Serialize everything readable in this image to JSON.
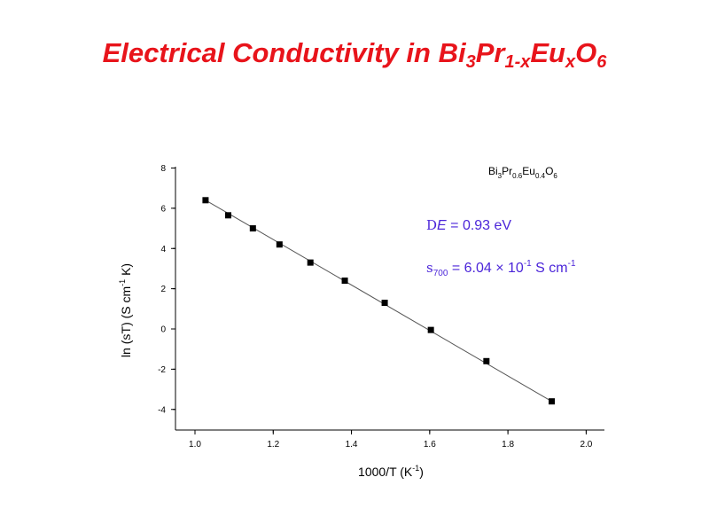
{
  "title": {
    "parts": [
      {
        "text": "Electrical Conductivity in Bi",
        "sub": false
      },
      {
        "text": "3",
        "sub": true
      },
      {
        "text": "Pr",
        "sub": false
      },
      {
        "text": "1-x",
        "sub": true
      },
      {
        "text": "Eu",
        "sub": false
      },
      {
        "text": "x",
        "sub": true
      },
      {
        "text": "O",
        "sub": false
      },
      {
        "text": "6",
        "sub": true
      }
    ]
  },
  "colors": {
    "title": "#e8141b",
    "annotation": "#4b25d9",
    "marker": "#000000",
    "fit_line": "#555555"
  },
  "chart_data": {
    "type": "scatter",
    "title": "",
    "xlabel": {
      "base": "1000/T (K",
      "sup": "-1",
      "end": ")"
    },
    "ylabel": {
      "pre": "ln (",
      "greek": "s",
      "mid": "T) (S cm",
      "sup": "-1",
      "end": " K)"
    },
    "xlim": [
      0.9,
      2.0
    ],
    "ylim": [
      -5,
      8
    ],
    "xticks": [
      1.0,
      1.2,
      1.4,
      1.6,
      1.8,
      2.0
    ],
    "xtick_labels": [
      "1.0",
      "1.2",
      "1.4",
      "1.6",
      "1.8",
      "2.0"
    ],
    "yticks": [
      -4,
      -2,
      0,
      2,
      4,
      6,
      8
    ],
    "ytick_labels": [
      "-4",
      "-2",
      "0",
      "2",
      "4",
      "6",
      "8"
    ],
    "grid": false,
    "marker": "square",
    "series": [
      {
        "x": [
          1.027,
          1.085,
          1.148,
          1.216,
          1.295,
          1.383,
          1.485,
          1.603,
          1.745,
          1.912
        ],
        "y": [
          6.4,
          5.65,
          5.0,
          4.2,
          3.3,
          2.4,
          1.3,
          -0.05,
          -1.6,
          -3.6
        ]
      }
    ],
    "fit_line": {
      "x": [
        1.027,
        1.912
      ],
      "y": [
        6.4,
        -3.6
      ]
    },
    "annotations": {
      "sample": {
        "parts": [
          {
            "text": "Bi",
            "sub": false
          },
          {
            "text": "3",
            "sub": true
          },
          {
            "text": "Pr",
            "sub": false
          },
          {
            "text": "0.6",
            "sub": true
          },
          {
            "text": "Eu",
            "sub": false
          },
          {
            "text": "0.4",
            "sub": true
          },
          {
            "text": "O",
            "sub": false
          },
          {
            "text": "6",
            "sub": true
          }
        ]
      },
      "activation_energy": {
        "greek": "D",
        "var": "E",
        "rest": " = 0.93 eV"
      },
      "sigma700": {
        "greek": "s",
        "sub": "700",
        "mid": " = 6.04 ",
        "times": "×",
        "base": " 10",
        "sup": "-1",
        "end": " S cm",
        "sup2": "-1"
      }
    }
  }
}
